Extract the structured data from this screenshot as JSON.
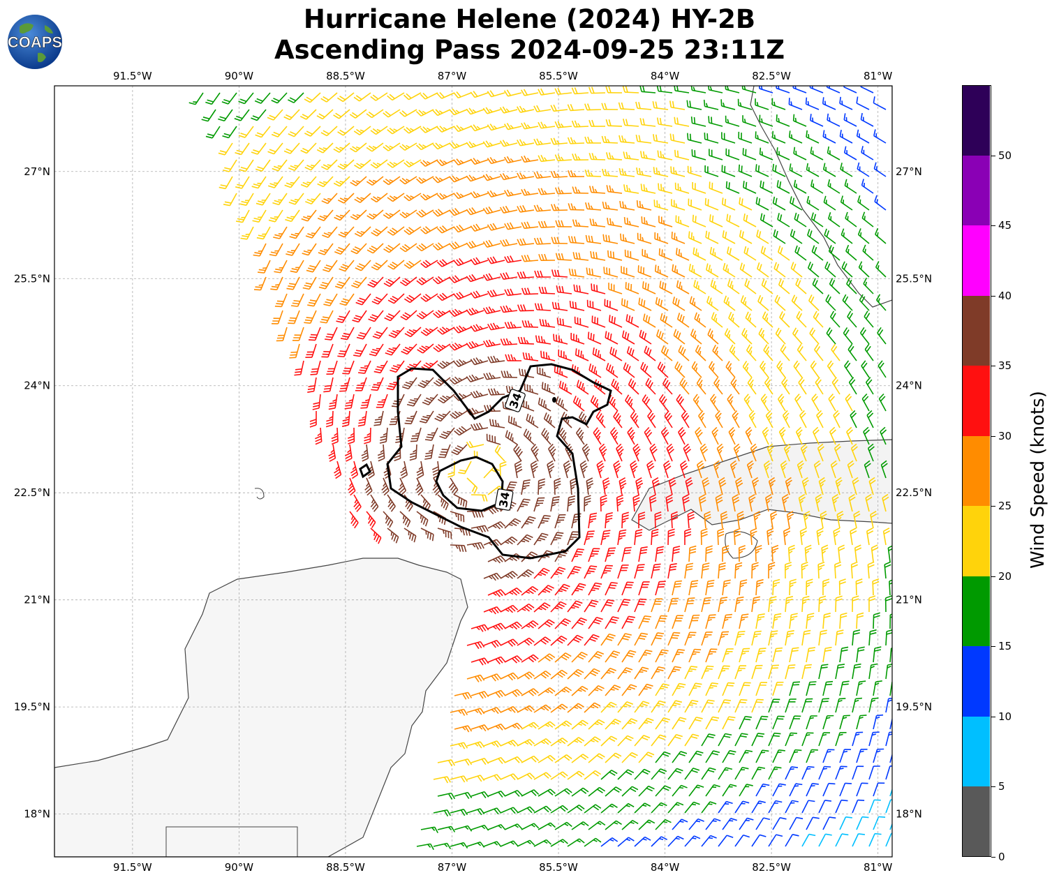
{
  "title": {
    "line1": "Hurricane Helene (2024) HY-2B",
    "line2": "Ascending Pass 2024-09-25 23:11Z"
  },
  "logo": {
    "text": "COAPS",
    "icon": "globe-icon"
  },
  "axes": {
    "lon_labels": [
      "91.5°W",
      "90°W",
      "88.5°W",
      "87°W",
      "85.5°W",
      "84°W",
      "82.5°W",
      "81°W"
    ],
    "lat_labels": [
      "27°N",
      "25.5°N",
      "24°N",
      "22.5°N",
      "21°N",
      "19.5°N",
      "18°N"
    ],
    "lon_range": [
      -92.6,
      -80.8
    ],
    "lat_range": [
      17.4,
      28.2
    ]
  },
  "contour": {
    "level_label": "34",
    "level_value": 34
  },
  "colorbar": {
    "title": "Wind Speed (knots)",
    "tick_labels": [
      "0",
      "5",
      "10",
      "15",
      "20",
      "25",
      "30",
      "35",
      "40",
      "45",
      "50"
    ],
    "colors": [
      "#595959",
      "#00bfff",
      "#0039ff",
      "#009a00",
      "#ffd30b",
      "#ff8c00",
      "#ff1010",
      "#7f3b28",
      "#ff00ff",
      "#8a00b5",
      "#2e0058"
    ]
  },
  "legend_bins_knots": [
    0,
    5,
    10,
    15,
    20,
    25,
    30,
    35,
    40,
    45,
    50,
    55
  ]
}
